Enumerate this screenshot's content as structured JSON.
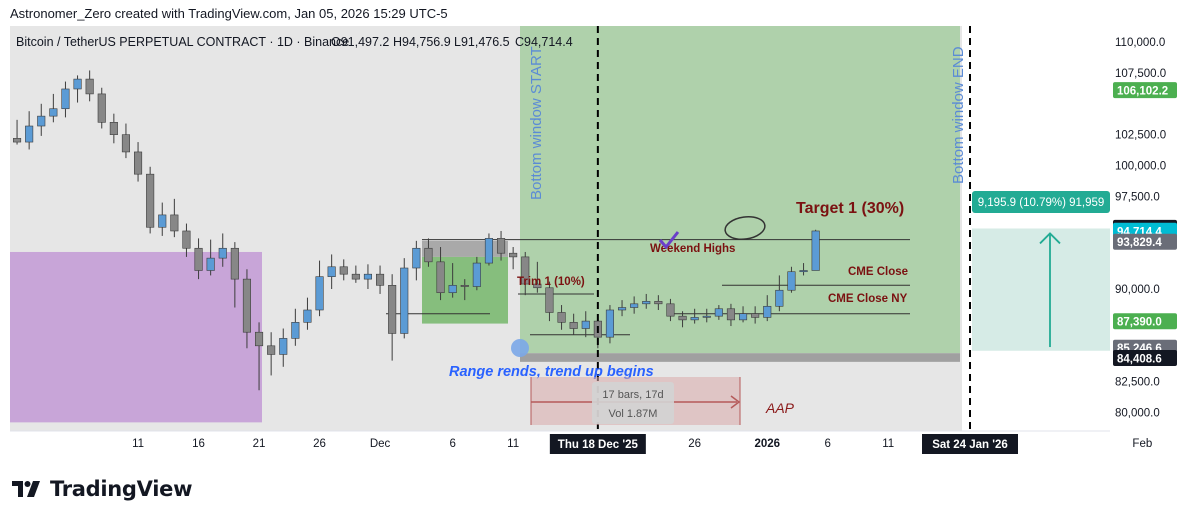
{
  "credit": "Astronomer_Zero created with TradingView.com, Jan 05, 2026 15:29 UTC-5",
  "symbol_line": "Bitcoin / TetherUS PERPETUAL CONTRACT · 1D · Binance",
  "ohlc": {
    "o": "O91,497.2",
    "h": "H94,756.9",
    "l": "L91,476.5",
    "c": "C94,714.4"
  },
  "brand": "TradingView",
  "colors": {
    "up": "#5b9bd5",
    "down": "#878787",
    "green_zone": "#a5cca0",
    "pink_zone": "#c8a5d8",
    "dark_red": "#7b1111",
    "window_text": "#5b8bd5",
    "teal": "#22ab94"
  },
  "chart_data": {
    "type": "candlestick",
    "ylim": [
      78500,
      111300
    ],
    "y_ticks": [
      "110,000.0",
      "107,500.0",
      "102,500.0",
      "100,000.0",
      "97,500.0",
      "90,000.0",
      "82,500.0",
      "80,000.0"
    ],
    "x_ticks": [
      {
        "label": "11",
        "bar": 10
      },
      {
        "label": "16",
        "bar": 15
      },
      {
        "label": "21",
        "bar": 20
      },
      {
        "label": "26",
        "bar": 25
      },
      {
        "label": "Dec",
        "bar": 30
      },
      {
        "label": "6",
        "bar": 36
      },
      {
        "label": "11",
        "bar": 41
      },
      {
        "label": "26",
        "bar": 56
      },
      {
        "label": "2026",
        "bar": 62
      },
      {
        "label": "6",
        "bar": 67
      },
      {
        "label": "11",
        "bar": 72
      },
      {
        "label": "16",
        "bar": 77
      },
      {
        "label": "Feb",
        "bar": 93
      }
    ],
    "x_markers": [
      {
        "label": "Thu 18 Dec '25",
        "bar": 48
      },
      {
        "label": "Sat 24 Jan '26",
        "bar": 85
      }
    ],
    "candles": [
      [
        102200,
        101900,
        103700,
        101700
      ],
      [
        101900,
        103200,
        104400,
        101300
      ],
      [
        103200,
        104000,
        105000,
        102400
      ],
      [
        104000,
        104600,
        105800,
        103500
      ],
      [
        104600,
        106200,
        106800,
        103900
      ],
      [
        106200,
        107000,
        107300,
        105100
      ],
      [
        107000,
        105800,
        107700,
        105200
      ],
      [
        105800,
        103500,
        106300,
        103000
      ],
      [
        103500,
        102500,
        104200,
        101800
      ],
      [
        102500,
        101100,
        103400,
        100600
      ],
      [
        101100,
        99300,
        101900,
        98700
      ],
      [
        99300,
        95000,
        99900,
        94500
      ],
      [
        95000,
        96000,
        97000,
        94300
      ],
      [
        96000,
        94700,
        97300,
        94200
      ],
      [
        94700,
        93300,
        95300,
        92600
      ],
      [
        93300,
        91500,
        94100,
        90800
      ],
      [
        91500,
        92500,
        94000,
        91100
      ],
      [
        92500,
        93300,
        94500,
        91800
      ],
      [
        93300,
        90800,
        93800,
        88500
      ],
      [
        90800,
        86500,
        91600,
        85200
      ],
      [
        86500,
        85400,
        87300,
        81800
      ],
      [
        85400,
        84700,
        86500,
        83000
      ],
      [
        84700,
        86000,
        86800,
        83700
      ],
      [
        86000,
        87300,
        88400,
        85400
      ],
      [
        87300,
        88300,
        89300,
        86700
      ],
      [
        88300,
        91000,
        92300,
        87800
      ],
      [
        91000,
        91800,
        92800,
        90000
      ],
      [
        91800,
        91200,
        92400,
        90700
      ],
      [
        91200,
        90800,
        91900,
        90500
      ],
      [
        90800,
        91200,
        92000,
        90000
      ],
      [
        91200,
        90300,
        91900,
        89600
      ],
      [
        90300,
        86400,
        91200,
        84200
      ],
      [
        86400,
        91700,
        92500,
        86000
      ],
      [
        91700,
        93300,
        93900,
        90700
      ],
      [
        93300,
        92200,
        94100,
        91800
      ],
      [
        92200,
        89700,
        93400,
        89100
      ],
      [
        89700,
        90300,
        92100,
        89300
      ],
      [
        90300,
        90200,
        90800,
        89100
      ],
      [
        90200,
        92100,
        92600,
        89900
      ],
      [
        92100,
        94100,
        94500,
        91900
      ],
      [
        94100,
        92900,
        94700,
        92300
      ],
      [
        92900,
        92600,
        93400,
        91600
      ],
      [
        92600,
        90400,
        93000,
        89500
      ],
      [
        90400,
        90100,
        92200,
        89700
      ],
      [
        90100,
        88100,
        90600,
        87400
      ],
      [
        88100,
        87300,
        88700,
        86700
      ],
      [
        87300,
        86800,
        88000,
        86300
      ],
      [
        86800,
        87400,
        88200,
        86100
      ],
      [
        87400,
        86100,
        87800,
        85200
      ],
      [
        86100,
        88300,
        88700,
        85600
      ],
      [
        88300,
        88500,
        89100,
        87800
      ],
      [
        88500,
        88800,
        89400,
        88000
      ],
      [
        88800,
        89000,
        89600,
        88400
      ],
      [
        89000,
        88800,
        89500,
        88300
      ],
      [
        88800,
        87800,
        89200,
        87400
      ],
      [
        87800,
        87500,
        88200,
        86900
      ],
      [
        87500,
        87700,
        88400,
        87200
      ],
      [
        87700,
        87800,
        88400,
        87300
      ],
      [
        87800,
        88400,
        88700,
        87500
      ],
      [
        88400,
        87500,
        88800,
        87000
      ],
      [
        87500,
        88000,
        88600,
        87300
      ],
      [
        88000,
        87700,
        88600,
        87200
      ],
      [
        87700,
        88600,
        89500,
        87400
      ],
      [
        88600,
        89900,
        91100,
        88200
      ],
      [
        89900,
        91400,
        91800,
        89700
      ],
      [
        91400,
        91500,
        92100,
        91100
      ],
      [
        91500,
        94700,
        94800,
        91500
      ]
    ],
    "price_labels": [
      {
        "text": "106,102.2",
        "value": 106102.2,
        "color": "#4caf50"
      },
      {
        "text": "94,953.3",
        "value": 94953.3,
        "color": "#131722"
      },
      {
        "text": "94,714.4",
        "value": 94714.4,
        "color": "#00bcd4"
      },
      {
        "text": "93,829.4",
        "value": 93829.4,
        "color": "#6a6d78"
      },
      {
        "text": "87,390.0",
        "value": 87390.0,
        "color": "#4caf50"
      },
      {
        "text": "85,246.6",
        "value": 85246.6,
        "color": "#6a6d78"
      },
      {
        "text": "84,408.6",
        "value": 84408.6,
        "color": "#131722"
      }
    ],
    "annotations": {
      "window_start": "Bottom window START",
      "window_end": "Bottom window END",
      "target1": "Target 1 (30%)",
      "weekend_highs": "Weekend Highs",
      "trim1": "Trim 1 (10%)",
      "cme_close": "CME Close",
      "cme_close_ny": "CME Close NY",
      "range_text": "Range rends, trend up begins",
      "aap": "AAP",
      "range_bars": "17 bars, 17d",
      "range_vol": "Vol 1.87M",
      "measure": "9,195.9 (10.79%) 91,959"
    },
    "levels": {
      "target1": 94000,
      "cme_close": 90300,
      "cme_close_ny": 88000,
      "trim1": 89600,
      "trim_base": 86300
    }
  }
}
